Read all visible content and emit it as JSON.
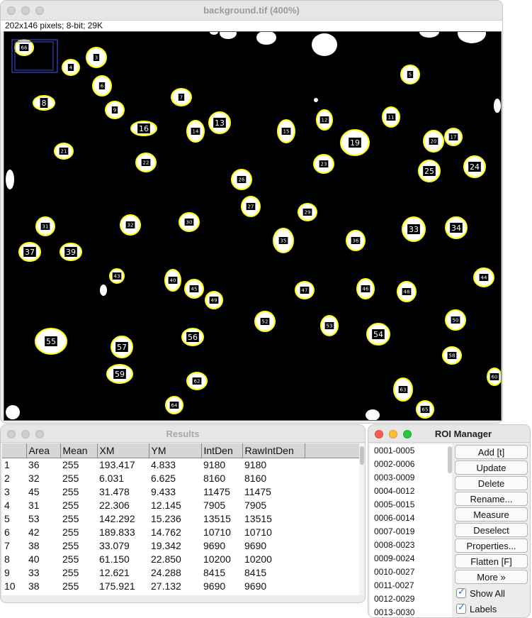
{
  "image_window": {
    "title": "background.tif (400%)",
    "info": "202x146 pixels; 8-bit; 29K",
    "roi_labels": [
      "2",
      "3",
      "4",
      "5",
      "6",
      "7",
      "8",
      "9",
      "11",
      "12",
      "13",
      "14",
      "15",
      "16",
      "17",
      "19",
      "20",
      "21",
      "22",
      "23",
      "24",
      "25",
      "26",
      "27",
      "29",
      "30",
      "31",
      "32",
      "33",
      "34",
      "35",
      "36",
      "37",
      "39",
      "40",
      "43",
      "44",
      "45",
      "46",
      "47",
      "48",
      "49",
      "50",
      "52",
      "53",
      "54",
      "55",
      "56",
      "57",
      "58",
      "59",
      "60",
      "62",
      "63",
      "64",
      "65",
      "66"
    ]
  },
  "results_window": {
    "title": "Results",
    "columns": [
      "",
      "Area",
      "Mean",
      "XM",
      "YM",
      "IntDen",
      "RawIntDen"
    ],
    "rows": [
      [
        "1",
        "36",
        "255",
        "193.417",
        "4.833",
        "9180",
        "9180"
      ],
      [
        "2",
        "32",
        "255",
        "6.031",
        "6.625",
        "8160",
        "8160"
      ],
      [
        "3",
        "45",
        "255",
        "31.478",
        "9.433",
        "11475",
        "11475"
      ],
      [
        "4",
        "31",
        "255",
        "22.306",
        "12.145",
        "7905",
        "7905"
      ],
      [
        "5",
        "53",
        "255",
        "142.292",
        "15.236",
        "13515",
        "13515"
      ],
      [
        "6",
        "42",
        "255",
        "189.833",
        "14.762",
        "10710",
        "10710"
      ],
      [
        "7",
        "38",
        "255",
        "33.079",
        "19.342",
        "9690",
        "9690"
      ],
      [
        "8",
        "40",
        "255",
        "61.150",
        "22.850",
        "10200",
        "10200"
      ],
      [
        "9",
        "33",
        "255",
        "12.621",
        "24.288",
        "8415",
        "8415"
      ],
      [
        "10",
        "38",
        "255",
        "175.921",
        "27.132",
        "9690",
        "9690"
      ]
    ]
  },
  "roi_manager": {
    "title": "ROI Manager",
    "items": [
      "0001-0005",
      "0002-0006",
      "0003-0009",
      "0004-0012",
      "0005-0015",
      "0006-0014",
      "0007-0019",
      "0008-0023",
      "0009-0024",
      "0010-0027",
      "0011-0027",
      "0012-0029",
      "0013-0030"
    ],
    "buttons": {
      "add": "Add [t]",
      "update": "Update",
      "delete": "Delete",
      "rename": "Rename...",
      "measure": "Measure",
      "deselect": "Deselect",
      "properties": "Properties...",
      "flatten": "Flatten [F]",
      "more": "More »"
    },
    "show_all": {
      "label": "Show All",
      "checked": true
    },
    "labels": {
      "label": "Labels",
      "checked": true
    }
  },
  "colors": {
    "roi_outline": "#ffff00",
    "selection": "#3f48cc",
    "blob": "#ffffff",
    "background": "#000000"
  }
}
